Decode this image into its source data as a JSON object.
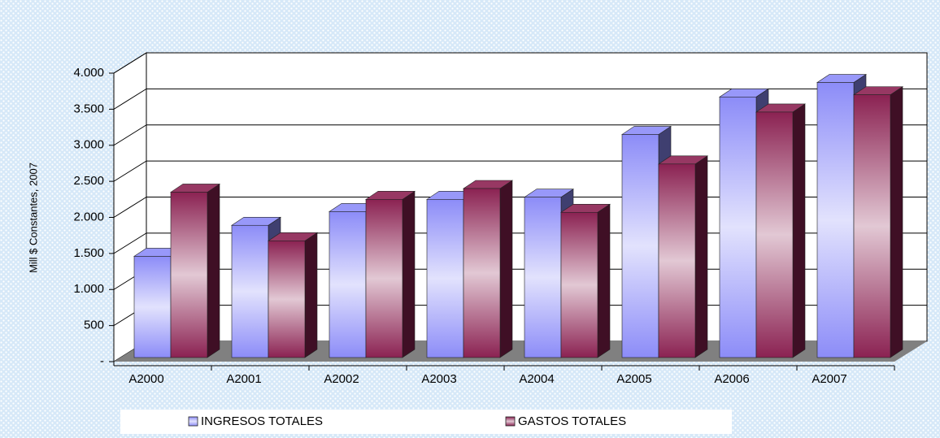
{
  "chart_data": {
    "type": "bar3d",
    "y_label": "Mill $ Constantes, 2007",
    "categories": [
      "A2000",
      "A2001",
      "A2002",
      "A2003",
      "A2004",
      "A2005",
      "A2006",
      "A2007"
    ],
    "series": [
      {
        "name": "INGRESOS TOTALES",
        "color": "#8c8cf8",
        "values": [
          1460,
          1890,
          2080,
          2250,
          2280,
          3150,
          3670,
          3870
        ]
      },
      {
        "name": "GASTOS TOTALES",
        "color": "#8b2252",
        "values": [
          2350,
          1675,
          2250,
          2400,
          2070,
          2740,
          3460,
          3700
        ]
      }
    ],
    "ylim": [
      0,
      4000
    ],
    "yticks": [
      {
        "value": 0,
        "label": "-"
      },
      500,
      {
        "value": 1000,
        "label": "1.000"
      },
      {
        "value": 1500,
        "label": "1.500"
      },
      {
        "value": 2000,
        "label": "2.000"
      },
      {
        "value": 2500,
        "label": "2.500"
      },
      {
        "value": 3000,
        "label": "3.000"
      },
      {
        "value": 3500,
        "label": "3.500"
      },
      {
        "value": 4000,
        "label": "4.000"
      }
    ],
    "grid": true
  }
}
